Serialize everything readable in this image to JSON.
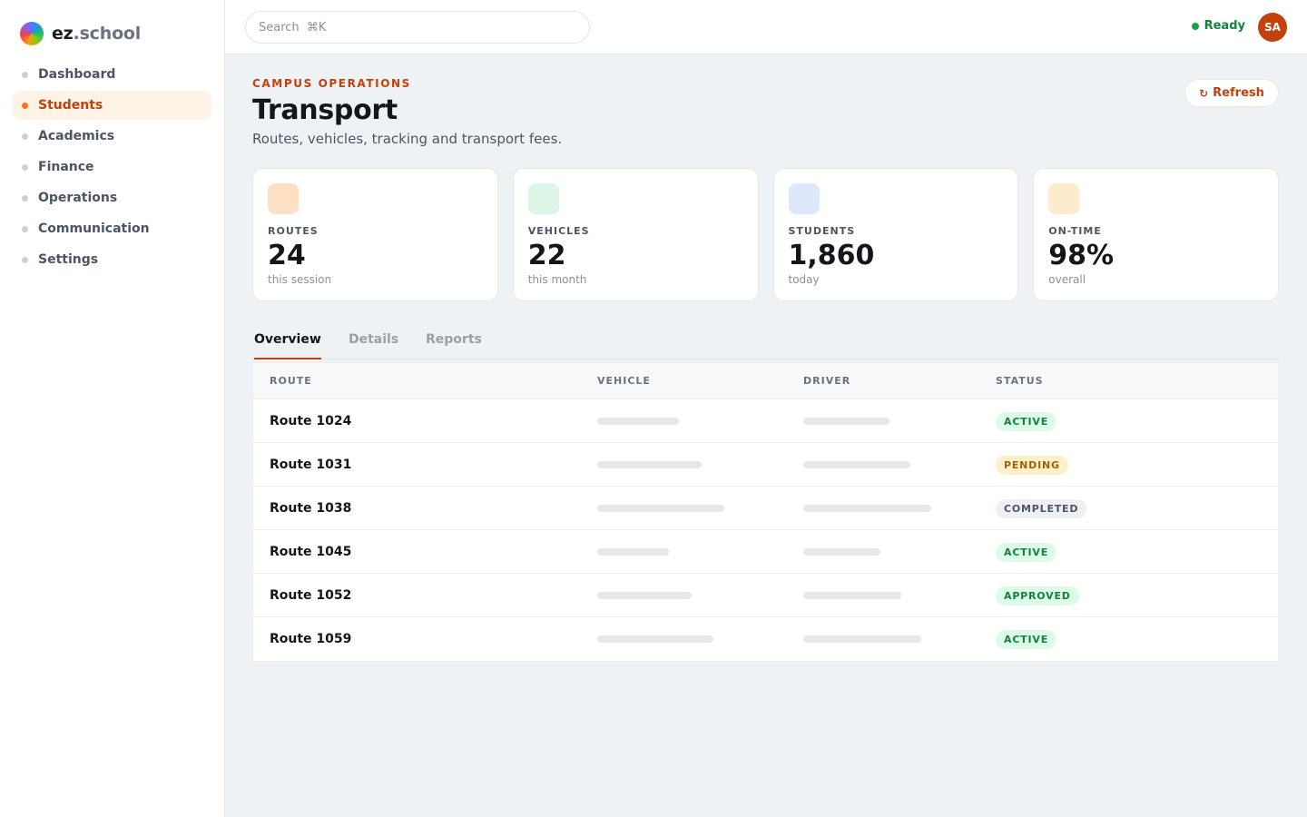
{
  "brand": {
    "name": "ez",
    "suffix": ".school"
  },
  "sidebar": {
    "items": [
      {
        "label": "Dashboard",
        "active": false
      },
      {
        "label": "Students",
        "active": true
      },
      {
        "label": "Academics",
        "active": false
      },
      {
        "label": "Finance",
        "active": false
      },
      {
        "label": "Operations",
        "active": false
      },
      {
        "label": "Communication",
        "active": false
      },
      {
        "label": "Settings",
        "active": false
      }
    ]
  },
  "topbar": {
    "search_placeholder": "Search  ⌘K",
    "status": "Ready",
    "avatar_initials": "SA"
  },
  "header": {
    "eyebrow": "CAMPUS OPERATIONS",
    "title": "Transport",
    "subtitle": "Routes, vehicles, tracking and transport fees.",
    "refresh_label": "Refresh",
    "refresh_icon": "↻"
  },
  "cards": [
    {
      "label": "ROUTES",
      "value": "24",
      "sub": "this session",
      "color": "#fde0c4"
    },
    {
      "label": "VEHICLES",
      "value": "22",
      "sub": "this month",
      "color": "#dcf5e6"
    },
    {
      "label": "STUDENTS",
      "value": "1,860",
      "sub": "today",
      "color": "#dde9fb"
    },
    {
      "label": "ON-TIME",
      "value": "98%",
      "sub": "overall",
      "color": "#fcebcc"
    }
  ],
  "tabs": [
    {
      "label": "Overview",
      "active": true
    },
    {
      "label": "Details",
      "active": false
    },
    {
      "label": "Reports",
      "active": false
    }
  ],
  "table": {
    "columns": [
      "ROUTE",
      "VEHICLE",
      "DRIVER",
      "STATUS"
    ],
    "rows": [
      {
        "route": "Route 1024",
        "status": "ACTIVE"
      },
      {
        "route": "Route 1031",
        "status": "PENDING"
      },
      {
        "route": "Route 1038",
        "status": "COMPLETED"
      },
      {
        "route": "Route 1045",
        "status": "ACTIVE"
      },
      {
        "route": "Route 1052",
        "status": "APPROVED"
      },
      {
        "route": "Route 1059",
        "status": "ACTIVE"
      }
    ]
  }
}
